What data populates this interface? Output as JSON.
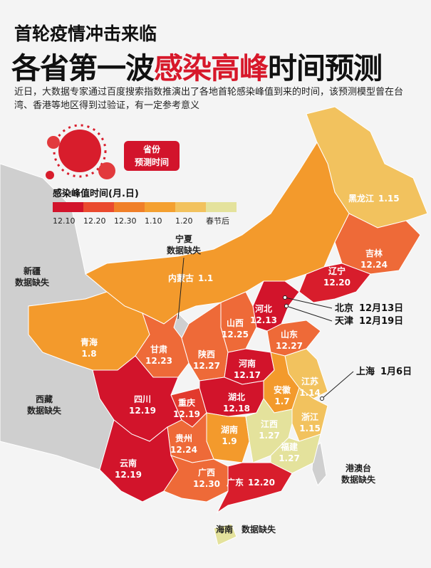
{
  "header": {
    "title_line1": "首轮疫情冲击来临",
    "title_line2_prefix": "各省第一波",
    "title_highlight": "感染高峰",
    "title_line2_suffix": "时间预测",
    "intro": "近日，大数据专家通过百度搜索指数推演出了各地首轮感染峰值到来的时间，该预测模型曾在台湾、香港等地区得到过验证，有一定参考意义"
  },
  "badge": {
    "line1": "省份",
    "line2": "预测时间"
  },
  "legend": {
    "title": "感染峰值时间(月.日)",
    "items": [
      {
        "label": "12.10",
        "color": "#d2142b"
      },
      {
        "label": "12.20",
        "color": "#ea4a2e"
      },
      {
        "label": "12.30",
        "color": "#f07f28"
      },
      {
        "label": "1.10",
        "color": "#f4a030"
      },
      {
        "label": "1.20",
        "color": "#f2c25e"
      },
      {
        "label": "春节后",
        "color": "#e4e29c"
      }
    ]
  },
  "regions": [
    {
      "name": "黑龙江",
      "date": "1.15",
      "color": "#f2c25e"
    },
    {
      "name": "吉林",
      "date": "12.24",
      "color": "#ee6a38"
    },
    {
      "name": "辽宁",
      "date": "12.20",
      "color": "#d81d2c"
    },
    {
      "name": "内蒙古",
      "date": "1.1",
      "color": "#f39a2c"
    },
    {
      "name": "河北",
      "date": "12.13",
      "color": "#d2142b"
    },
    {
      "name": "山西",
      "date": "12.25",
      "color": "#ee6a38"
    },
    {
      "name": "山东",
      "date": "12.27",
      "color": "#ee6a38"
    },
    {
      "name": "青海",
      "date": "1.8",
      "color": "#f39a2c"
    },
    {
      "name": "甘肃",
      "date": "12.23",
      "color": "#ee6a38"
    },
    {
      "name": "陕西",
      "date": "12.27",
      "color": "#ee6a38"
    },
    {
      "name": "河南",
      "date": "12.17",
      "color": "#d2142b"
    },
    {
      "name": "江苏",
      "date": "1.14",
      "color": "#f2c25e"
    },
    {
      "name": "安徽",
      "date": "1.7",
      "color": "#f39a2c"
    },
    {
      "name": "四川",
      "date": "12.19",
      "color": "#d2142b"
    },
    {
      "name": "重庆",
      "date": "12.19",
      "color": "#e23a2d"
    },
    {
      "name": "湖北",
      "date": "12.18",
      "color": "#d2142b"
    },
    {
      "name": "浙江",
      "date": "1.15",
      "color": "#f2c25e"
    },
    {
      "name": "湖南",
      "date": "1.9",
      "color": "#f39a2c"
    },
    {
      "name": "江西",
      "date": "1.27",
      "color": "#e4e29c"
    },
    {
      "name": "福建",
      "date": "1.27",
      "color": "#e4e29c"
    },
    {
      "name": "贵州",
      "date": "12.24",
      "color": "#ee6a38"
    },
    {
      "name": "云南",
      "date": "12.19",
      "color": "#d2142b"
    },
    {
      "name": "广西",
      "date": "12.30",
      "color": "#ee6a38"
    },
    {
      "name": "广东",
      "date": "12.20",
      "color": "#d81d2c"
    }
  ],
  "callouts": [
    {
      "name": "北京",
      "date": "12月13日"
    },
    {
      "name": "天津",
      "date": "12月19日"
    },
    {
      "name": "上海",
      "date": "1月6日"
    }
  ],
  "missing": [
    {
      "name": "宁夏",
      "note": "数据缺失"
    },
    {
      "name": "新疆",
      "note": "数据缺失"
    },
    {
      "name": "西藏",
      "note": "数据缺失"
    },
    {
      "name": "港澳台",
      "note": "数据缺失"
    },
    {
      "name": "海南",
      "note": "数据缺失"
    }
  ]
}
